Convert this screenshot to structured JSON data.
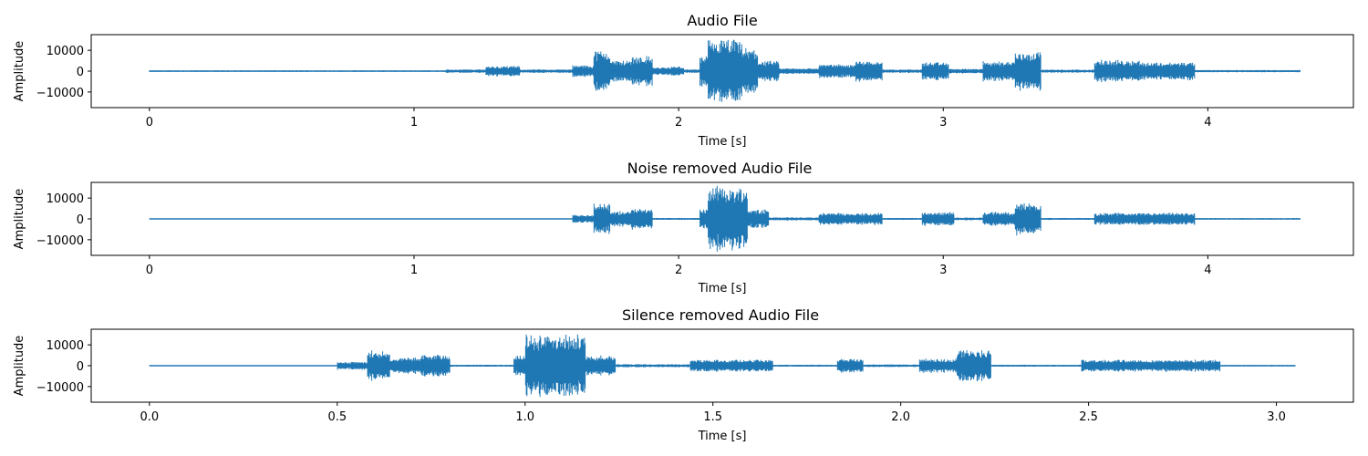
{
  "chart_data": [
    {
      "type": "line",
      "title": "Audio File",
      "xlabel": "Time [s]",
      "ylabel": "Amplitude",
      "xlim": [
        -0.22,
        4.55
      ],
      "ylim": [
        -17500,
        17500
      ],
      "xticks": [
        0,
        1,
        2,
        3,
        4
      ],
      "xtick_labels": [
        "0",
        "1",
        "2",
        "3",
        "4"
      ],
      "yticks": [
        10000,
        0,
        -10000
      ],
      "ytick_labels": [
        "10000",
        "0",
        "−10000"
      ],
      "duration": 4.35,
      "color": "#1f77b4",
      "grid": false,
      "segments": [
        {
          "t0": 0.0,
          "t1": 1.12,
          "amp": 400
        },
        {
          "t0": 1.12,
          "t1": 1.27,
          "amp": 900
        },
        {
          "t0": 1.27,
          "t1": 1.4,
          "amp": 2600
        },
        {
          "t0": 1.4,
          "t1": 1.6,
          "amp": 900
        },
        {
          "t0": 1.6,
          "t1": 1.68,
          "amp": 3000
        },
        {
          "t0": 1.68,
          "t1": 1.74,
          "amp": 10500
        },
        {
          "t0": 1.74,
          "t1": 1.82,
          "amp": 5500
        },
        {
          "t0": 1.82,
          "t1": 1.9,
          "amp": 7500
        },
        {
          "t0": 1.9,
          "t1": 1.97,
          "amp": 2000
        },
        {
          "t0": 1.97,
          "t1": 2.02,
          "amp": 2400
        },
        {
          "t0": 2.02,
          "t1": 2.08,
          "amp": 900
        },
        {
          "t0": 2.08,
          "t1": 2.11,
          "amp": 7500
        },
        {
          "t0": 2.11,
          "t1": 2.24,
          "amp": 16000
        },
        {
          "t0": 2.24,
          "t1": 2.3,
          "amp": 11500
        },
        {
          "t0": 2.3,
          "t1": 2.38,
          "amp": 5000
        },
        {
          "t0": 2.38,
          "t1": 2.53,
          "amp": 1500
        },
        {
          "t0": 2.53,
          "t1": 2.67,
          "amp": 3500
        },
        {
          "t0": 2.67,
          "t1": 2.77,
          "amp": 5500
        },
        {
          "t0": 2.77,
          "t1": 2.92,
          "amp": 900
        },
        {
          "t0": 2.92,
          "t1": 3.02,
          "amp": 4500
        },
        {
          "t0": 3.02,
          "t1": 3.15,
          "amp": 1200
        },
        {
          "t0": 3.15,
          "t1": 3.27,
          "amp": 5000
        },
        {
          "t0": 3.27,
          "t1": 3.37,
          "amp": 10000
        },
        {
          "t0": 3.37,
          "t1": 3.57,
          "amp": 800
        },
        {
          "t0": 3.57,
          "t1": 3.75,
          "amp": 5500
        },
        {
          "t0": 3.75,
          "t1": 3.95,
          "amp": 4500
        },
        {
          "t0": 3.95,
          "t1": 4.35,
          "amp": 600
        }
      ]
    },
    {
      "type": "line",
      "title": "Noise removed Audio File",
      "xlabel": "Time [s]",
      "ylabel": "Amplitude",
      "xlim": [
        -0.22,
        4.55
      ],
      "ylim": [
        -17500,
        17500
      ],
      "xticks": [
        0,
        1,
        2,
        3,
        4
      ],
      "xtick_labels": [
        "0",
        "1",
        "2",
        "3",
        "4"
      ],
      "yticks": [
        10000,
        0,
        -10000
      ],
      "ytick_labels": [
        "10000",
        "0",
        "−10000"
      ],
      "duration": 4.35,
      "color": "#1f77b4",
      "grid": false,
      "segments": [
        {
          "t0": 0.0,
          "t1": 1.6,
          "amp": 250
        },
        {
          "t0": 1.6,
          "t1": 1.68,
          "amp": 2000
        },
        {
          "t0": 1.68,
          "t1": 1.74,
          "amp": 7500
        },
        {
          "t0": 1.74,
          "t1": 1.82,
          "amp": 4000
        },
        {
          "t0": 1.82,
          "t1": 1.9,
          "amp": 5500
        },
        {
          "t0": 1.9,
          "t1": 2.08,
          "amp": 500
        },
        {
          "t0": 2.08,
          "t1": 2.11,
          "amp": 5000
        },
        {
          "t0": 2.11,
          "t1": 2.26,
          "amp": 16000
        },
        {
          "t0": 2.26,
          "t1": 2.34,
          "amp": 5000
        },
        {
          "t0": 2.34,
          "t1": 2.53,
          "amp": 800
        },
        {
          "t0": 2.53,
          "t1": 2.77,
          "amp": 3000
        },
        {
          "t0": 2.77,
          "t1": 2.92,
          "amp": 500
        },
        {
          "t0": 2.92,
          "t1": 3.04,
          "amp": 3500
        },
        {
          "t0": 3.04,
          "t1": 3.15,
          "amp": 700
        },
        {
          "t0": 3.15,
          "t1": 3.27,
          "amp": 3500
        },
        {
          "t0": 3.27,
          "t1": 3.37,
          "amp": 8000
        },
        {
          "t0": 3.37,
          "t1": 3.57,
          "amp": 500
        },
        {
          "t0": 3.57,
          "t1": 3.95,
          "amp": 3000
        },
        {
          "t0": 3.95,
          "t1": 4.35,
          "amp": 400
        }
      ]
    },
    {
      "type": "line",
      "title": "Silence removed Audio File",
      "xlabel": "Time [s]",
      "ylabel": "Amplitude",
      "xlim": [
        -0.155,
        3.205
      ],
      "ylim": [
        -17500,
        17500
      ],
      "xticks": [
        0.0,
        0.5,
        1.0,
        1.5,
        2.0,
        2.5,
        3.0
      ],
      "xtick_labels": [
        "0.0",
        "0.5",
        "1.0",
        "1.5",
        "2.0",
        "2.5",
        "3.0"
      ],
      "yticks": [
        10000,
        0,
        -10000
      ],
      "ytick_labels": [
        "10000",
        "0",
        "−10000"
      ],
      "duration": 3.05,
      "color": "#1f77b4",
      "grid": false,
      "segments": [
        {
          "t0": 0.0,
          "t1": 0.5,
          "amp": 250
        },
        {
          "t0": 0.5,
          "t1": 0.58,
          "amp": 2000
        },
        {
          "t0": 0.58,
          "t1": 0.64,
          "amp": 7500
        },
        {
          "t0": 0.64,
          "t1": 0.72,
          "amp": 4000
        },
        {
          "t0": 0.72,
          "t1": 0.8,
          "amp": 5500
        },
        {
          "t0": 0.8,
          "t1": 0.97,
          "amp": 500
        },
        {
          "t0": 0.97,
          "t1": 1.0,
          "amp": 5000
        },
        {
          "t0": 1.0,
          "t1": 1.16,
          "amp": 16000
        },
        {
          "t0": 1.16,
          "t1": 1.24,
          "amp": 5000
        },
        {
          "t0": 1.24,
          "t1": 1.44,
          "amp": 800
        },
        {
          "t0": 1.44,
          "t1": 1.66,
          "amp": 3000
        },
        {
          "t0": 1.66,
          "t1": 1.83,
          "amp": 500
        },
        {
          "t0": 1.83,
          "t1": 1.9,
          "amp": 3500
        },
        {
          "t0": 1.9,
          "t1": 2.05,
          "amp": 700
        },
        {
          "t0": 2.05,
          "t1": 2.15,
          "amp": 3500
        },
        {
          "t0": 2.15,
          "t1": 2.24,
          "amp": 8000
        },
        {
          "t0": 2.24,
          "t1": 2.48,
          "amp": 500
        },
        {
          "t0": 2.48,
          "t1": 2.85,
          "amp": 3000
        },
        {
          "t0": 2.85,
          "t1": 3.05,
          "amp": 400
        }
      ]
    }
  ]
}
